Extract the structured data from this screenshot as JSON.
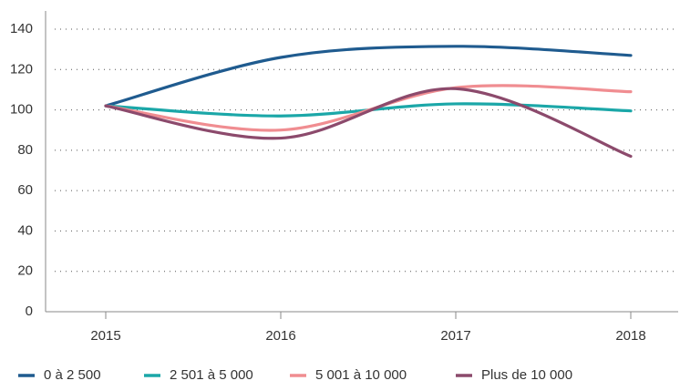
{
  "chart_data": {
    "type": "line",
    "categories": [
      "2015",
      "2016",
      "2017",
      "2018"
    ],
    "series": [
      {
        "name": "0 à 2 500",
        "color": "#1f5b8f",
        "values": [
          102,
          126,
          131.5,
          127
        ]
      },
      {
        "name": "2 501 à 5 000",
        "color": "#1ba7a8",
        "values": [
          102,
          97,
          103,
          99.5
        ]
      },
      {
        "name": "5 001 à 10 000",
        "color": "#f08d91",
        "values": [
          102,
          90,
          111,
          109
        ]
      },
      {
        "name": "Plus de 10 000",
        "color": "#8c4a6c",
        "values": [
          102,
          86,
          110.5,
          77
        ]
      }
    ],
    "ylim": [
      0,
      140
    ],
    "yticks": [
      0,
      20,
      40,
      60,
      80,
      100,
      120,
      140
    ],
    "grid": true,
    "legend": "bottom"
  }
}
